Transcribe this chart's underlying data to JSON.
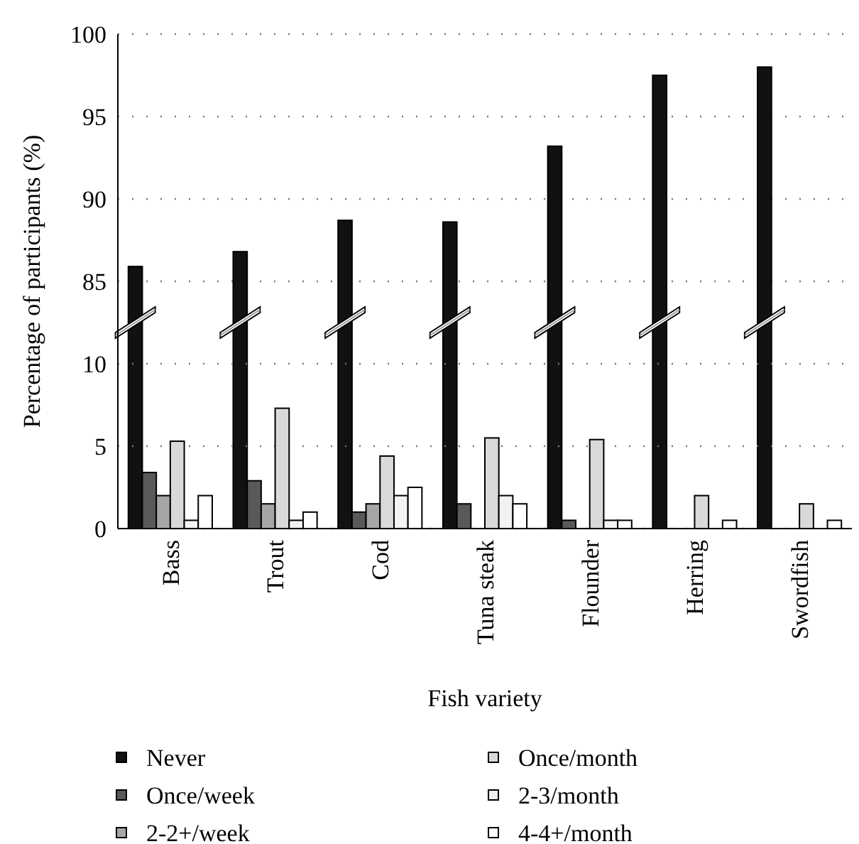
{
  "chart_data": [
    {
      "type": "bar",
      "ylabel": "Percentage of participants (%)",
      "series": [
        {
          "color": "#111111",
          "values": [
            85.9,
            86.8,
            88.7,
            88.6,
            93.2,
            97.5,
            98.0
          ]
        }
      ],
      "ylim": [
        82.5,
        100
      ],
      "yticks": [
        85,
        90,
        95,
        100
      ],
      "grid": "y",
      "tick_labels": "y"
    },
    {
      "type": "bar",
      "xlabel": "Fish variety",
      "categories": [
        "Bass",
        "Trout",
        "Cod",
        "Tuna steak",
        "Flounder",
        "Herring",
        "Swordfish"
      ],
      "series": [
        {
          "name": "Never",
          "color": "#111111",
          "values": [
            null,
            null,
            null,
            null,
            null,
            null,
            null
          ]
        },
        {
          "name": "Once/week",
          "color": "#595959",
          "values": [
            3.4,
            2.9,
            1.0,
            1.5,
            0.5,
            0,
            0
          ]
        },
        {
          "name": "2-2+/week",
          "color": "#a6a6a6",
          "values": [
            2.0,
            1.5,
            1.5,
            0,
            0,
            0,
            0
          ]
        },
        {
          "name": "Once/month",
          "color": "#d9d9d9",
          "values": [
            5.3,
            7.3,
            4.4,
            5.5,
            5.4,
            2.0,
            1.5
          ]
        },
        {
          "name": "2-3/month",
          "color": "#f2f2f2",
          "values": [
            0.5,
            0.5,
            2.0,
            2.0,
            0.5,
            0,
            0
          ]
        },
        {
          "name": "4-4+/month",
          "color": "#ffffff",
          "values": [
            2.0,
            1.0,
            2.5,
            1.5,
            0.5,
            0.5,
            0.5
          ]
        }
      ],
      "ylim": [
        0,
        12.5
      ],
      "yticks": [
        0,
        5,
        10
      ],
      "grid": "y",
      "legend": "bottom"
    }
  ]
}
